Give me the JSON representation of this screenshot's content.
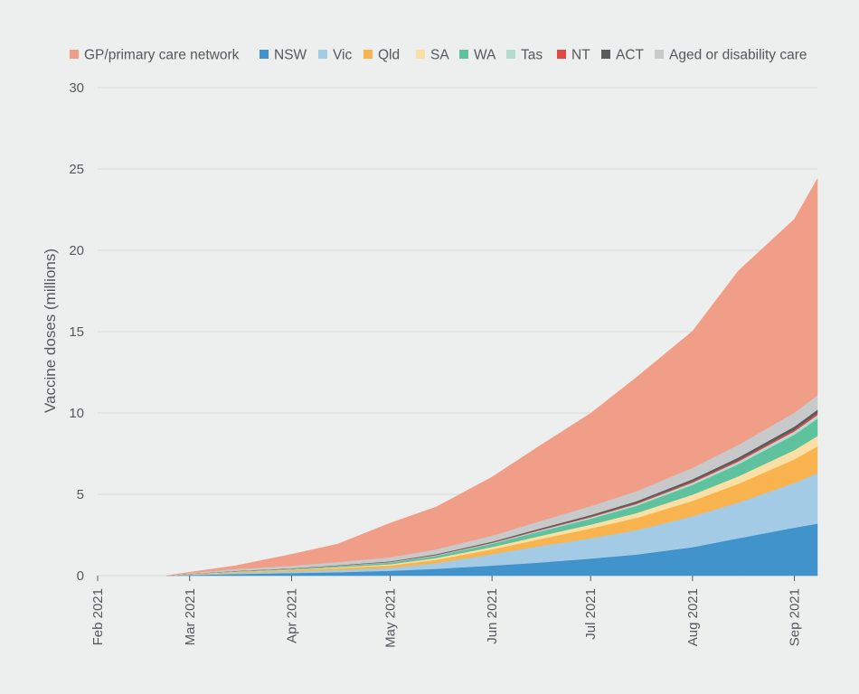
{
  "chart_data": {
    "type": "area",
    "stacked": true,
    "title": "",
    "xlabel": "",
    "ylabel": "Vaccine doses (millions)",
    "ylim": [
      0,
      30
    ],
    "yticks": [
      0,
      5,
      10,
      15,
      20,
      25,
      30
    ],
    "grid": true,
    "legend_position": "top",
    "x_dates": [
      "2021-02-22",
      "2021-03-01",
      "2021-03-15",
      "2021-04-01",
      "2021-04-15",
      "2021-05-01",
      "2021-05-15",
      "2021-06-01",
      "2021-06-15",
      "2021-07-01",
      "2021-07-15",
      "2021-08-01",
      "2021-08-15",
      "2021-09-01",
      "2021-09-08"
    ],
    "x_tick_dates": [
      "2021-02-01",
      "2021-03-01",
      "2021-04-01",
      "2021-05-01",
      "2021-06-01",
      "2021-07-01",
      "2021-08-01",
      "2021-09-01"
    ],
    "x_tick_labels": [
      "Feb 2021",
      "Mar 2021",
      "Apr 2021",
      "May 2021",
      "Jun 2021",
      "Jul 2021",
      "Aug 2021",
      "Sep 2021"
    ],
    "x_domain": [
      "2021-02-01",
      "2021-09-08"
    ],
    "series": [
      {
        "name": "NSW",
        "color": "#4194cb",
        "values": [
          0.0,
          0.04,
          0.1,
          0.16,
          0.21,
          0.3,
          0.42,
          0.62,
          0.8,
          1.05,
          1.3,
          1.75,
          2.3,
          2.95,
          3.2
        ]
      },
      {
        "name": "Vic",
        "color": "#a4cbe5",
        "values": [
          0.0,
          0.03,
          0.07,
          0.1,
          0.14,
          0.18,
          0.35,
          0.7,
          1.0,
          1.25,
          1.5,
          1.9,
          2.2,
          2.75,
          3.1
        ]
      },
      {
        "name": "Qld",
        "color": "#f9b450",
        "values": [
          0.0,
          0.02,
          0.05,
          0.08,
          0.12,
          0.15,
          0.21,
          0.3,
          0.42,
          0.6,
          0.75,
          0.95,
          1.15,
          1.45,
          1.65
        ]
      },
      {
        "name": "SA",
        "color": "#fbe0a5",
        "values": [
          0.0,
          0.01,
          0.02,
          0.03,
          0.05,
          0.07,
          0.1,
          0.14,
          0.19,
          0.24,
          0.3,
          0.38,
          0.46,
          0.57,
          0.63
        ]
      },
      {
        "name": "WA",
        "color": "#5ec29f",
        "values": [
          0.0,
          0.01,
          0.03,
          0.05,
          0.07,
          0.1,
          0.14,
          0.2,
          0.28,
          0.36,
          0.45,
          0.6,
          0.75,
          0.95,
          1.07
        ]
      },
      {
        "name": "Tas",
        "color": "#b4ddd2",
        "values": [
          0.0,
          0.0,
          0.01,
          0.01,
          0.02,
          0.03,
          0.04,
          0.05,
          0.07,
          0.09,
          0.11,
          0.14,
          0.16,
          0.2,
          0.22
        ]
      },
      {
        "name": "NT",
        "color": "#e44747",
        "values": [
          0.0,
          0.0,
          0.0,
          0.01,
          0.01,
          0.02,
          0.02,
          0.03,
          0.04,
          0.05,
          0.06,
          0.08,
          0.09,
          0.11,
          0.12
        ]
      },
      {
        "name": "ACT",
        "color": "#5b5c5e",
        "values": [
          0.0,
          0.0,
          0.01,
          0.01,
          0.02,
          0.03,
          0.04,
          0.05,
          0.07,
          0.09,
          0.11,
          0.13,
          0.16,
          0.19,
          0.21
        ]
      },
      {
        "name": "Aged or disability care",
        "color": "#c8c9ca",
        "values": [
          0.0,
          0.05,
          0.12,
          0.16,
          0.2,
          0.25,
          0.3,
          0.37,
          0.45,
          0.55,
          0.62,
          0.7,
          0.78,
          0.85,
          0.9
        ]
      },
      {
        "name": "GP/primary care network",
        "color": "#f19e88",
        "values": [
          0.0,
          0.05,
          0.2,
          0.7,
          1.1,
          2.1,
          2.6,
          3.6,
          4.6,
          5.7,
          7.0,
          8.4,
          10.7,
          11.9,
          13.3
        ]
      }
    ]
  }
}
